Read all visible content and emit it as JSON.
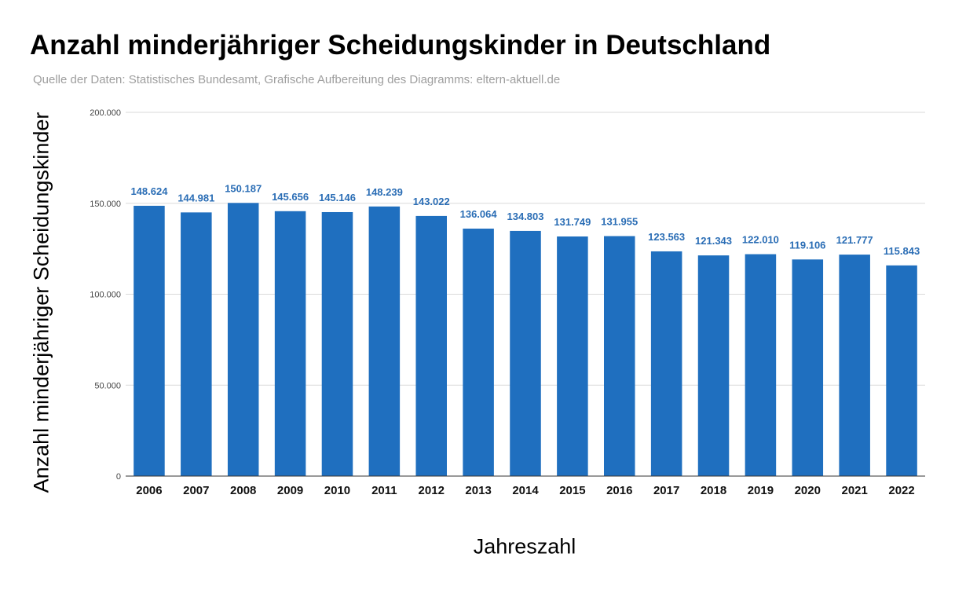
{
  "chart_data": {
    "type": "bar",
    "title": "Anzahl minderjähriger Scheidungskinder in Deutschland",
    "subtitle": "Quelle der Daten: Statistisches Bundesamt, Grafische Aufbereitung des Diagramms: eltern-aktuell.de",
    "xlabel": "Jahreszahl",
    "ylabel": "Anzahl minderjähriger Scheidungskinder",
    "categories": [
      "2006",
      "2007",
      "2008",
      "2009",
      "2010",
      "2011",
      "2012",
      "2013",
      "2014",
      "2015",
      "2016",
      "2017",
      "2018",
      "2019",
      "2020",
      "2021",
      "2022"
    ],
    "values": [
      148624,
      144981,
      150187,
      145656,
      145146,
      148239,
      143022,
      136064,
      134803,
      131749,
      131955,
      123563,
      121343,
      122010,
      119106,
      121777,
      115843
    ],
    "data_labels": [
      "148.624",
      "144.981",
      "150.187",
      "145.656",
      "145.146",
      "148.239",
      "143.022",
      "136.064",
      "134.803",
      "131.749",
      "131.955",
      "123.563",
      "121.343",
      "122.010",
      "119.106",
      "121.777",
      "115.843"
    ],
    "ylim": [
      0,
      200000
    ],
    "yticks": [
      0,
      50000,
      100000,
      150000,
      200000
    ],
    "ytick_labels": [
      "0",
      "50.000",
      "100.000",
      "150.000",
      "200.000"
    ],
    "grid": true,
    "colors": {
      "bar": "#1f6fbf",
      "data_label": "#2a6db5",
      "grid": "#d9d9d9",
      "axis": "#333333"
    }
  }
}
